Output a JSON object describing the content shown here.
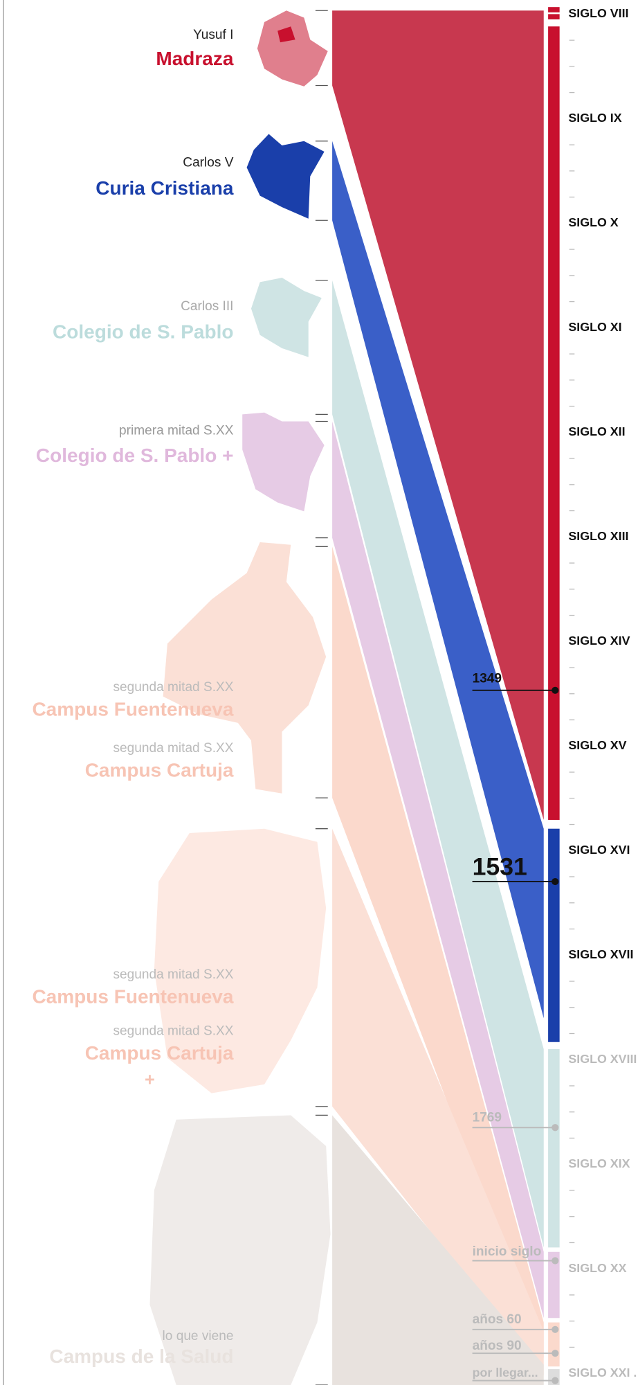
{
  "eras": [
    {
      "period": "Yusuf I",
      "name": "Madraza"
    },
    {
      "period": "Carlos V",
      "name": "Curia Cristiana"
    },
    {
      "period": "Carlos III",
      "name": "Colegio de S. Pablo"
    },
    {
      "period": "primera mitad S.XX",
      "name": "Colegio de S. Pablo +"
    },
    {
      "period": "segunda mitad S.XX",
      "name": "Campus Fuentenueva"
    },
    {
      "period": "segunda mitad S.XX",
      "name": "Campus Cartuja"
    },
    {
      "period": "segunda mitad S.XX",
      "name": "Campus Fuentenueva"
    },
    {
      "period": "segunda mitad S.XX",
      "name": "Campus Cartuja"
    },
    {
      "period": "lo que viene",
      "name": "Campus de la Salud"
    }
  ],
  "extra": "+",
  "centuries": [
    "SIGLO VIII",
    "SIGLO IX",
    "SIGLO X",
    "SIGLO XI",
    "SIGLO XII",
    "SIGLO XIII",
    "SIGLO XIV",
    "SIGLO XV",
    "SIGLO XVI",
    "SIGLO XVII",
    "SIGLO XVIII",
    "SIGLO XIX",
    "SIGLO XX",
    "SIGLO XXI ."
  ],
  "dates": [
    "1349",
    "1531",
    "1769",
    "inicio siglo",
    "años 60",
    "años 90",
    "por llegar..."
  ]
}
